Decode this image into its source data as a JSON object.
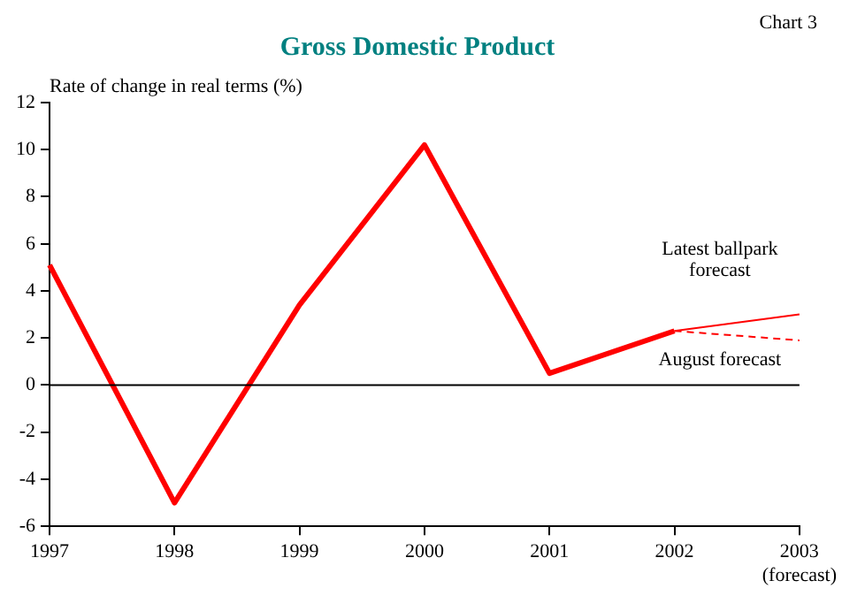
{
  "chart_data": {
    "type": "line",
    "title": "Gross Domestic Product",
    "ylabel": "Rate of change in real terms (%)",
    "annotations": [
      "Chart 3"
    ],
    "categories": [
      "1997",
      "1998",
      "1999",
      "2000",
      "2001",
      "2002",
      "2003 (forecast)"
    ],
    "series": [
      {
        "color": "#ff0000",
        "values": [
          5.1,
          -5.0,
          3.4,
          10.2,
          0.5,
          2.3,
          null
        ]
      },
      {
        "name": "Latest ballpark forecast",
        "color": "#ff0000",
        "values": [
          null,
          null,
          null,
          null,
          null,
          2.3,
          3.0
        ]
      },
      {
        "name": "August forecast",
        "color": "#ff0000",
        "line_style": "dashed",
        "values": [
          null,
          null,
          null,
          null,
          null,
          2.3,
          1.9
        ]
      }
    ],
    "ylim": [
      -6,
      12
    ],
    "yticks": [
      -6,
      -4,
      -2,
      0,
      2,
      4,
      6,
      8,
      10,
      12
    ],
    "grid": false,
    "legend": false,
    "marker": "none",
    "ref_lines": [
      {
        "axis": "y",
        "value": 0,
        "color": "#000000"
      }
    ]
  }
}
